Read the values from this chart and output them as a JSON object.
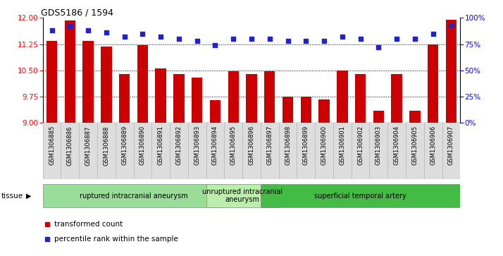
{
  "title": "GDS5186 / 1594",
  "samples": [
    "GSM1306885",
    "GSM1306886",
    "GSM1306887",
    "GSM1306888",
    "GSM1306889",
    "GSM1306890",
    "GSM1306891",
    "GSM1306892",
    "GSM1306893",
    "GSM1306894",
    "GSM1306895",
    "GSM1306896",
    "GSM1306897",
    "GSM1306898",
    "GSM1306899",
    "GSM1306900",
    "GSM1306901",
    "GSM1306902",
    "GSM1306903",
    "GSM1306904",
    "GSM1306905",
    "GSM1306906",
    "GSM1306907"
  ],
  "transformed_count": [
    11.35,
    11.93,
    11.35,
    11.18,
    10.4,
    11.22,
    10.55,
    10.4,
    10.3,
    9.65,
    10.47,
    10.4,
    10.47,
    9.75,
    9.75,
    9.68,
    10.5,
    10.4,
    9.35,
    10.4,
    9.35,
    11.25,
    11.95
  ],
  "percentile_rank": [
    88,
    92,
    88,
    86,
    82,
    85,
    82,
    80,
    78,
    74,
    80,
    80,
    80,
    78,
    78,
    78,
    82,
    80,
    72,
    80,
    80,
    85,
    93
  ],
  "ylim_left": [
    9,
    12
  ],
  "ylim_right": [
    0,
    100
  ],
  "yticks_left": [
    9,
    9.75,
    10.5,
    11.25,
    12
  ],
  "yticks_right": [
    0,
    25,
    50,
    75,
    100
  ],
  "ytick_labels_right": [
    "0%",
    "25%",
    "50%",
    "75%",
    "100%"
  ],
  "hlines": [
    9.75,
    10.5,
    11.25
  ],
  "bar_color": "#cc0000",
  "dot_color": "#2222cc",
  "tissue_groups": [
    {
      "label": "ruptured intracranial aneurysm",
      "start": 0,
      "end": 9,
      "color": "#99dd99"
    },
    {
      "label": "unruptured intracranial\naneurysm",
      "start": 9,
      "end": 12,
      "color": "#bbeeaa"
    },
    {
      "label": "superficial temporal artery",
      "start": 12,
      "end": 22,
      "color": "#44bb44"
    }
  ],
  "legend_items": [
    {
      "label": "transformed count",
      "color": "#cc0000"
    },
    {
      "label": "percentile rank within the sample",
      "color": "#2222cc"
    }
  ],
  "bg_color": "#ffffff",
  "tick_area_color": "#dddddd"
}
